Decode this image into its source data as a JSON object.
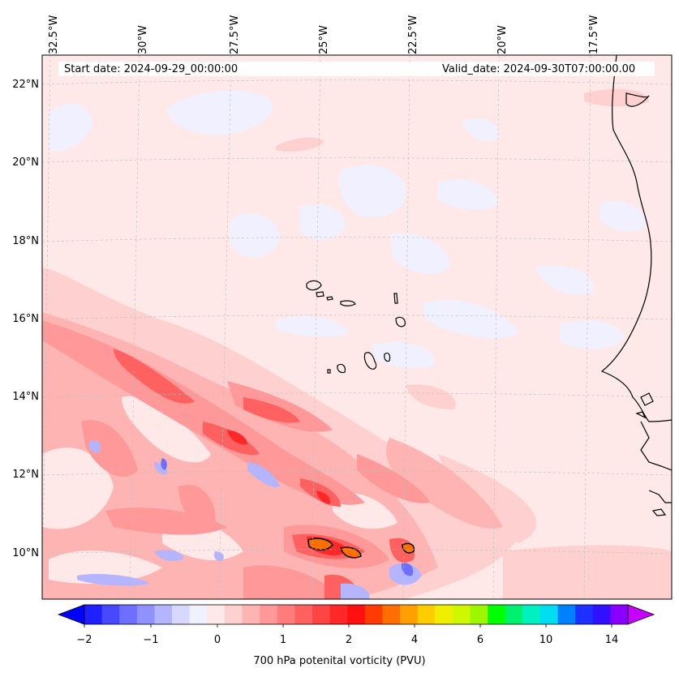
{
  "header": {
    "start_date": "Start date: 2024-09-29_00:00:00",
    "valid_date": "Valid_date: 2024-09-30T07:00:00.00"
  },
  "longitude_labels": [
    "32.5°W",
    "30°W",
    "27.5°W",
    "25°W",
    "22.5°W",
    "20°W",
    "17.5°W"
  ],
  "latitude_labels": [
    "22°N",
    "20°N",
    "18°N",
    "16°N",
    "14°N",
    "12°N",
    "10°N"
  ],
  "colorbar": {
    "tick_labels": [
      "−2",
      "−1",
      "0",
      "1",
      "2",
      "4",
      "6",
      "10",
      "14"
    ],
    "title": "700 hPa potenital vorticity (PVU)",
    "colors": [
      "#0000ff",
      "#2020ff",
      "#4848ff",
      "#6e6eff",
      "#9090ff",
      "#b4b4ff",
      "#d8d8ff",
      "#f0f0ff",
      "#ffe8e8",
      "#ffd0d0",
      "#ffb4b4",
      "#ff9898",
      "#ff7c7c",
      "#ff6060",
      "#ff4444",
      "#ff2828",
      "#ff1010",
      "#ff3c00",
      "#ff6e00",
      "#ffa000",
      "#ffcc00",
      "#f0ef00",
      "#cff700",
      "#9ef700",
      "#00ff00",
      "#00f070",
      "#00f0c0",
      "#00dcf0",
      "#0080ff",
      "#1c30ff",
      "#3010ff",
      "#8a00ff",
      "#c800ff"
    ]
  },
  "colors": {
    "background_field": "#ffe8e8",
    "coast": "#000000"
  }
}
